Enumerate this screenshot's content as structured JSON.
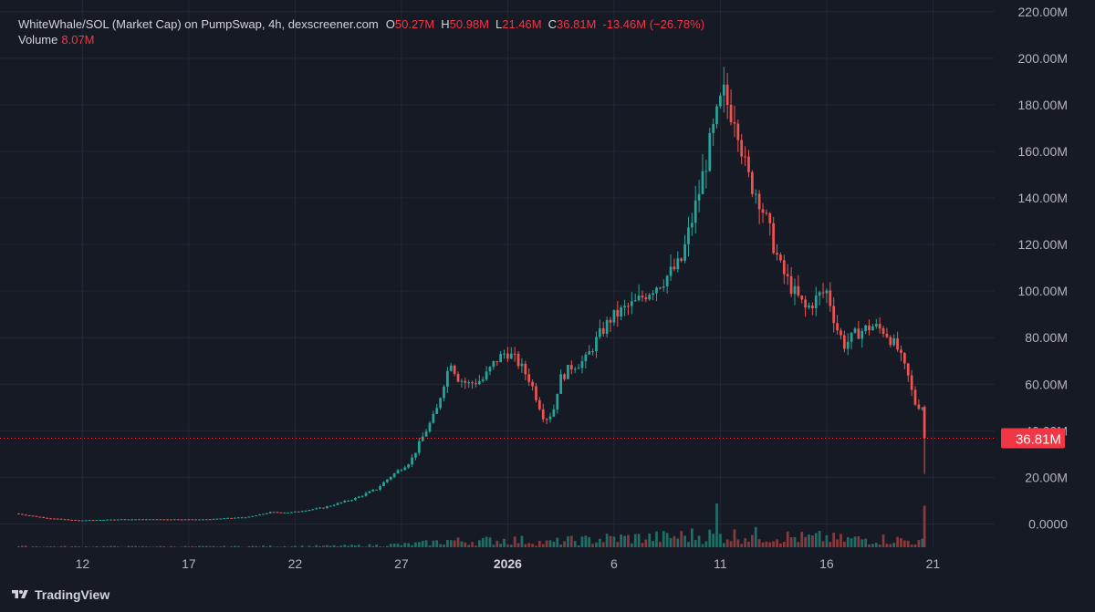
{
  "legend": {
    "symbol": "WhiteWhale/SOL (Market Cap) on PumpSwap, 4h, dexscreener.com",
    "open_label": "O",
    "open_value": "50.27M",
    "high_label": "H",
    "high_value": "50.98M",
    "low_label": "L",
    "low_value": "21.46M",
    "close_label": "C",
    "close_value": "36.81M",
    "change": "-13.46M (−26.78%)",
    "volume_label": "Volume",
    "volume_value": "8.07M"
  },
  "footer": {
    "brand": "TradingView",
    "logo_icon": "tradingview-logo-icon"
  },
  "colors": {
    "background": "#161a25",
    "grid": "#232734",
    "up": "#26a69a",
    "down": "#ef5350",
    "up_volume": "#1f6f67",
    "down_volume": "#8a3a3c",
    "price_line": "#f23645",
    "axis_text": "#b2b5be"
  },
  "chart_data": {
    "type": "candlestick",
    "interval": "4h",
    "y_unit": "M",
    "ylim": [
      -10,
      225
    ],
    "y_ticks": [
      0,
      20,
      40,
      60,
      80,
      100,
      120,
      140,
      160,
      180,
      200,
      220
    ],
    "y_tick_labels": [
      "0.0000",
      "20.00M",
      "40.00M",
      "60.00M",
      "80.00M",
      "100.00M",
      "120.00M",
      "140.00M",
      "160.00M",
      "180.00M",
      "200.00M",
      "220.00M"
    ],
    "x_ticks": [
      {
        "day_index": 3,
        "label": "12",
        "bold": false
      },
      {
        "day_index": 8,
        "label": "17",
        "bold": false
      },
      {
        "day_index": 13,
        "label": "22",
        "bold": false
      },
      {
        "day_index": 18,
        "label": "27",
        "bold": false
      },
      {
        "day_index": 23,
        "label": "2026",
        "bold": true
      },
      {
        "day_index": 28,
        "label": "6",
        "bold": false
      },
      {
        "day_index": 33,
        "label": "11",
        "bold": false
      },
      {
        "day_index": 38,
        "label": "16",
        "bold": false
      },
      {
        "day_index": 43,
        "label": "21",
        "bold": false
      }
    ],
    "x_range_days": [
      -0.45,
      45.9
    ],
    "last_price": 36.81,
    "last_price_label": "36.81M",
    "anchors": [
      [
        0,
        4.5
      ],
      [
        1.5,
        2.5
      ],
      [
        3,
        1.5
      ],
      [
        5,
        2
      ],
      [
        7,
        2
      ],
      [
        9,
        2
      ],
      [
        11,
        3
      ],
      [
        12,
        5
      ],
      [
        13,
        5
      ],
      [
        14.5,
        7
      ],
      [
        16,
        11
      ],
      [
        17,
        15
      ],
      [
        17.6,
        20
      ],
      [
        18.6,
        27
      ],
      [
        19.2,
        38
      ],
      [
        19.8,
        48
      ],
      [
        20.2,
        62
      ],
      [
        20.5,
        70
      ],
      [
        20.8,
        63
      ],
      [
        21.3,
        60
      ],
      [
        22,
        62
      ],
      [
        22.6,
        70
      ],
      [
        23.1,
        74
      ],
      [
        23.6,
        70
      ],
      [
        24.2,
        62
      ],
      [
        24.9,
        45
      ],
      [
        25.3,
        48
      ],
      [
        25.6,
        62
      ],
      [
        26.2,
        68
      ],
      [
        26.8,
        70
      ],
      [
        27.4,
        80
      ],
      [
        28,
        88
      ],
      [
        28.6,
        92
      ],
      [
        29.2,
        95
      ],
      [
        29.8,
        100
      ],
      [
        30.5,
        105
      ],
      [
        31.3,
        112
      ],
      [
        32.1,
        140
      ],
      [
        32.6,
        160
      ],
      [
        33.3,
        185
      ],
      [
        33.6,
        178
      ],
      [
        33.9,
        176
      ],
      [
        34.4,
        150
      ],
      [
        35,
        140
      ],
      [
        35.5,
        125
      ],
      [
        36,
        110
      ],
      [
        36.6,
        100
      ],
      [
        37.2,
        92
      ],
      [
        37.8,
        98
      ],
      [
        38.2,
        100
      ],
      [
        38.6,
        85
      ],
      [
        39,
        77
      ],
      [
        39.6,
        82
      ],
      [
        40.3,
        85
      ],
      [
        40.9,
        83
      ],
      [
        41.5,
        75
      ],
      [
        42,
        63
      ],
      [
        42.3,
        52
      ],
      [
        42.6,
        50.27
      ]
    ],
    "final_candle": {
      "open": 50.27,
      "high": 50.98,
      "low": 21.46,
      "close": 36.81
    },
    "volume": {
      "max": 8.07,
      "peak_day": 32.9
    }
  }
}
